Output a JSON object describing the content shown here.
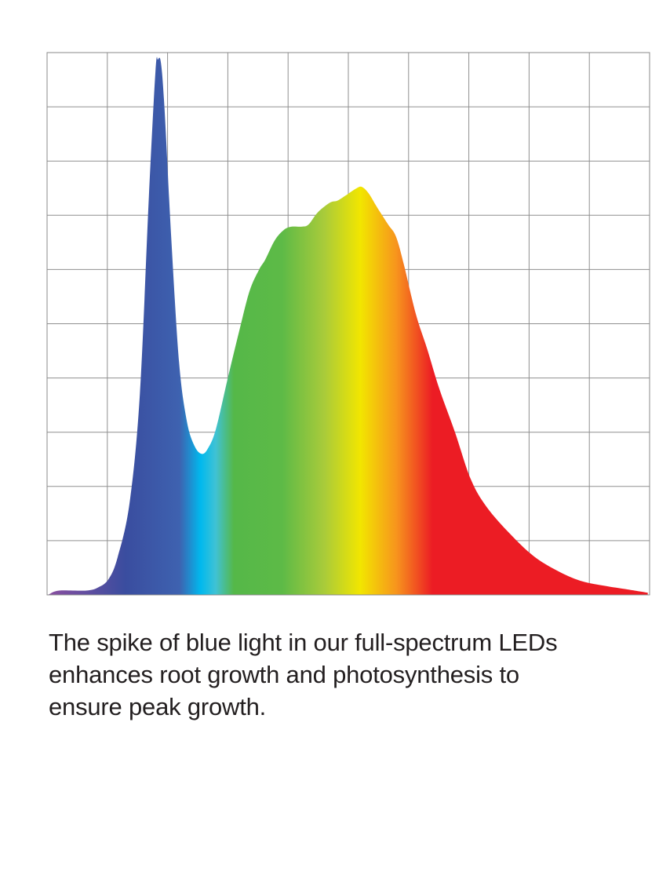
{
  "chart_data": {
    "type": "area",
    "title": "",
    "xlabel": "",
    "ylabel": "",
    "xlim": [
      0,
      10
    ],
    "ylim": [
      0,
      10
    ],
    "grid": true,
    "legend": "none",
    "tick_labels": "none",
    "fill": "spectrum gradient (violet-blue-cyan-green-yellow-orange-red)",
    "color_stops": [
      {
        "x": 0.0,
        "color": "#8a4fa0"
      },
      {
        "x": 1.3,
        "color": "#3a4d9f"
      },
      {
        "x": 2.2,
        "color": "#3e62b0"
      },
      {
        "x": 2.55,
        "color": "#00b9ee"
      },
      {
        "x": 2.8,
        "color": "#40c2d4"
      },
      {
        "x": 3.1,
        "color": "#55b848"
      },
      {
        "x": 3.9,
        "color": "#5dba47"
      },
      {
        "x": 4.6,
        "color": "#a9cb3a"
      },
      {
        "x": 5.2,
        "color": "#f2e600"
      },
      {
        "x": 5.8,
        "color": "#f7941d"
      },
      {
        "x": 6.4,
        "color": "#ec1c24"
      },
      {
        "x": 10.0,
        "color": "#ec1c24"
      }
    ],
    "series": [
      {
        "x": [
          0.03,
          0.2,
          0.65,
          0.85,
          1.02,
          1.17,
          1.37,
          1.54,
          1.69,
          1.8,
          1.84,
          1.89,
          1.95,
          2.06,
          2.19,
          2.32,
          2.45,
          2.57,
          2.67,
          2.8,
          3.0,
          3.19,
          3.36,
          3.52,
          3.62,
          3.78,
          3.93,
          4.06,
          4.23,
          4.34,
          4.49,
          4.69,
          4.82,
          4.95,
          5.14,
          5.23,
          5.34,
          5.47,
          5.66,
          5.79,
          5.92,
          6.12,
          6.31,
          6.51,
          6.77,
          7.03,
          7.29,
          7.68,
          8.07,
          8.46,
          8.85,
          9.24,
          9.64,
          9.97
        ],
        "y": [
          0.01,
          0.08,
          0.08,
          0.14,
          0.29,
          0.69,
          1.7,
          3.7,
          7.35,
          9.67,
          9.87,
          9.81,
          8.95,
          6.6,
          4.3,
          3.2,
          2.74,
          2.6,
          2.7,
          3.05,
          4.0,
          4.87,
          5.6,
          6.0,
          6.18,
          6.54,
          6.73,
          6.79,
          6.79,
          6.83,
          7.05,
          7.23,
          7.27,
          7.36,
          7.5,
          7.52,
          7.4,
          7.16,
          6.83,
          6.61,
          6.1,
          5.18,
          4.53,
          3.8,
          3.0,
          2.14,
          1.63,
          1.13,
          0.72,
          0.45,
          0.26,
          0.17,
          0.1,
          0.04
        ]
      }
    ]
  },
  "caption": {
    "lines": [
      "The spike of blue light in our full-spectrum LEDs",
      "enhances root growth and photosynthesis to",
      "ensure peak growth."
    ]
  }
}
